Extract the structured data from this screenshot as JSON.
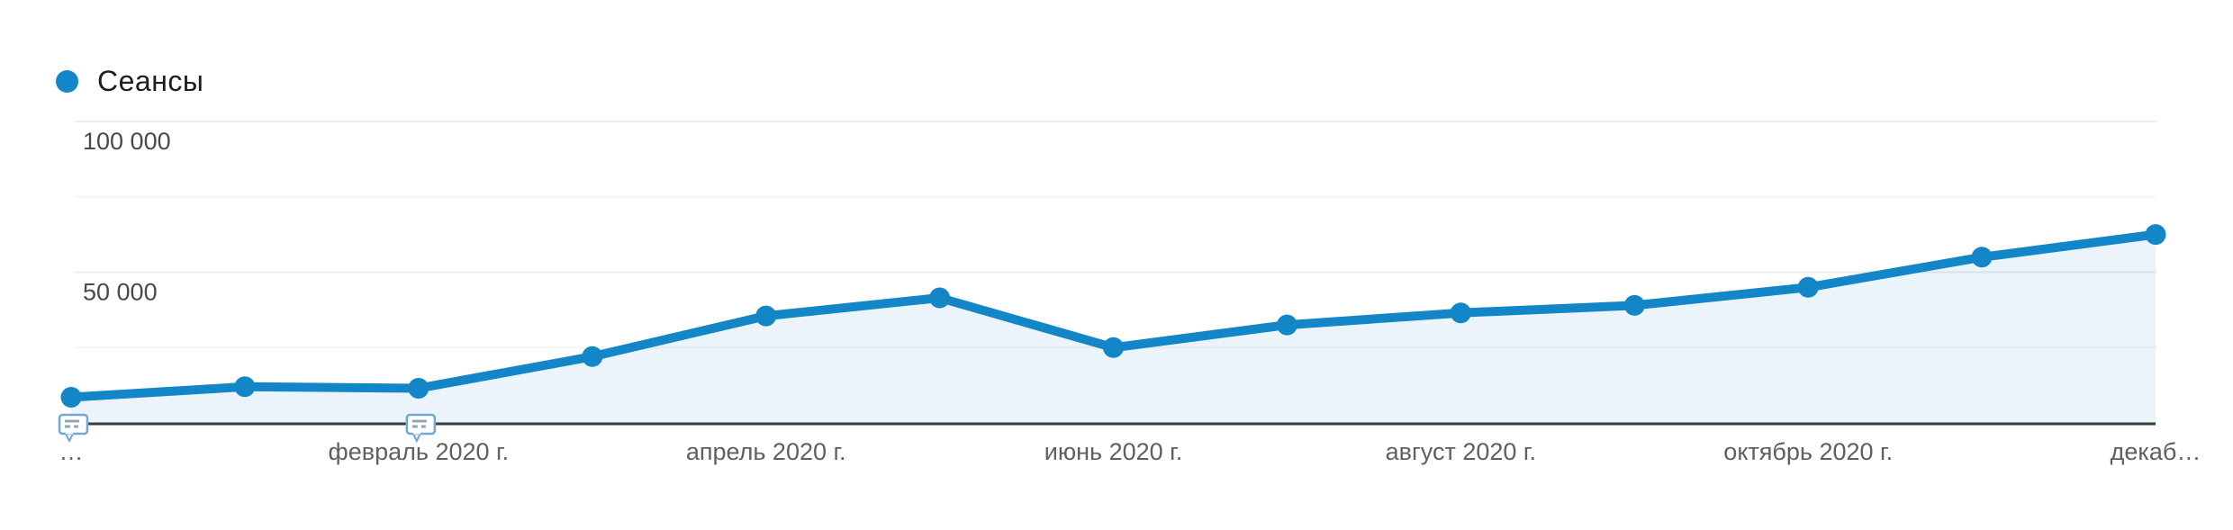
{
  "legend": {
    "label": "Сеансы"
  },
  "colors": {
    "series": "#1286c6",
    "area_fill": "rgba(18,134,198,0.09)",
    "axis": "#3c3c3c",
    "grid_major": "#ececec",
    "grid_minor": "#f5f5f5",
    "x_tick_label": "#5f5f5f",
    "y_tick_label": "#4a4a4a",
    "annotation_border": "#70a7d7",
    "annotation_text_lines": "#8fa6b5",
    "legend_text": "#1e1e1e"
  },
  "chart_data": {
    "type": "line",
    "title": "",
    "xlabel": "",
    "ylabel": "",
    "legend_position": "top-left",
    "grid": "horizontal",
    "num_points": 13,
    "ylim": [
      0,
      100000
    ],
    "series": [
      {
        "name": "Сеансы",
        "values": [
          8500,
          12000,
          11500,
          22000,
          35500,
          41500,
          25000,
          32500,
          36500,
          39000,
          45000,
          55000,
          62500
        ]
      }
    ],
    "x_tick_labels": [
      {
        "point_index": 0,
        "label": "…"
      },
      {
        "point_index": 2,
        "label": "февраль 2020 г."
      },
      {
        "point_index": 4,
        "label": "апрель 2020 г."
      },
      {
        "point_index": 6,
        "label": "июнь 2020 г."
      },
      {
        "point_index": 8,
        "label": "август 2020 г."
      },
      {
        "point_index": 10,
        "label": "октябрь 2020 г."
      },
      {
        "point_index": 12,
        "label": "декаб…"
      }
    ],
    "y_ticks": [
      {
        "value": 100000,
        "label": "100 000"
      },
      {
        "value": 50000,
        "label": "50 000"
      }
    ],
    "y_minor_gridlines": [
      75000,
      25000
    ],
    "annotation_markers_at_point_index": [
      0,
      2
    ]
  }
}
